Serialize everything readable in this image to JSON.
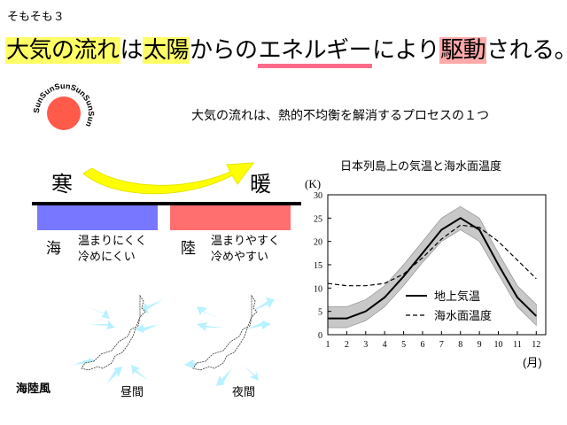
{
  "slide_number": "そもそも３",
  "title_parts": {
    "p1": "大気の流れ",
    "p2": "は",
    "p3": "太陽",
    "p4": "からの",
    "p5": "エネルギー",
    "p6": "により",
    "p7": "駆動",
    "p8": "される。"
  },
  "colors": {
    "highlight_yellow": "#ffff66",
    "highlight_pink": "#ffaaaa",
    "underline_pink": "#ff6b8a",
    "sun_fill": "#ff5a4a",
    "arrow_yellow": "#ffff00",
    "cold_bar": "#7777ff",
    "warm_bar": "#ff6f6f",
    "wind_arrow": "#b8f1ff",
    "band_gray": "#c8c8c8"
  },
  "sun": {
    "ring_text": "SunSunSunSunSunSun"
  },
  "subtitle": "大気の流れは、熱的不均衡を解消するプロセスの１つ",
  "diagram": {
    "cold_label": "寒",
    "warm_label": "暖",
    "sea": {
      "label": "海",
      "desc_line1": "温まりにくく",
      "desc_line2": "冷めにくい"
    },
    "land": {
      "label": "陸",
      "desc_line1": "温まりやすく",
      "desc_line2": "冷めやすい"
    }
  },
  "maps": {
    "caption": "海陸風",
    "day_label": "昼間",
    "night_label": "夜間"
  },
  "chart_title": "日本列島上の気温と海水面温度",
  "chart_data": {
    "type": "line",
    "title": "日本列島上の気温と海水面温度",
    "ylabel": "(K)",
    "xlabel": "(月)",
    "x": [
      1,
      2,
      3,
      4,
      5,
      6,
      7,
      8,
      9,
      10,
      11,
      12
    ],
    "ylim": [
      0,
      30
    ],
    "xlim": [
      1,
      12.5
    ],
    "y_ticks": [
      0,
      5,
      10,
      15,
      20,
      25,
      30
    ],
    "series": [
      {
        "name": "地上気温",
        "style": "solid",
        "values": [
          3.5,
          3.5,
          5,
          8,
          12.5,
          17.5,
          22.5,
          25,
          22.5,
          15,
          8,
          4
        ],
        "band_low": [
          1.5,
          1.5,
          3,
          6,
          10.5,
          15.5,
          20,
          22.5,
          20,
          13,
          6,
          2
        ],
        "band_high": [
          6,
          6,
          7.5,
          10.5,
          15,
          20,
          25,
          27.5,
          25,
          17.5,
          10.5,
          6.5
        ]
      },
      {
        "name": "海水面温度",
        "style": "dashed",
        "values": [
          11,
          10.5,
          10.5,
          11,
          13,
          16.5,
          20.5,
          23.5,
          23,
          20,
          16,
          12
        ]
      }
    ],
    "legend": "lower-right",
    "grid": false
  }
}
